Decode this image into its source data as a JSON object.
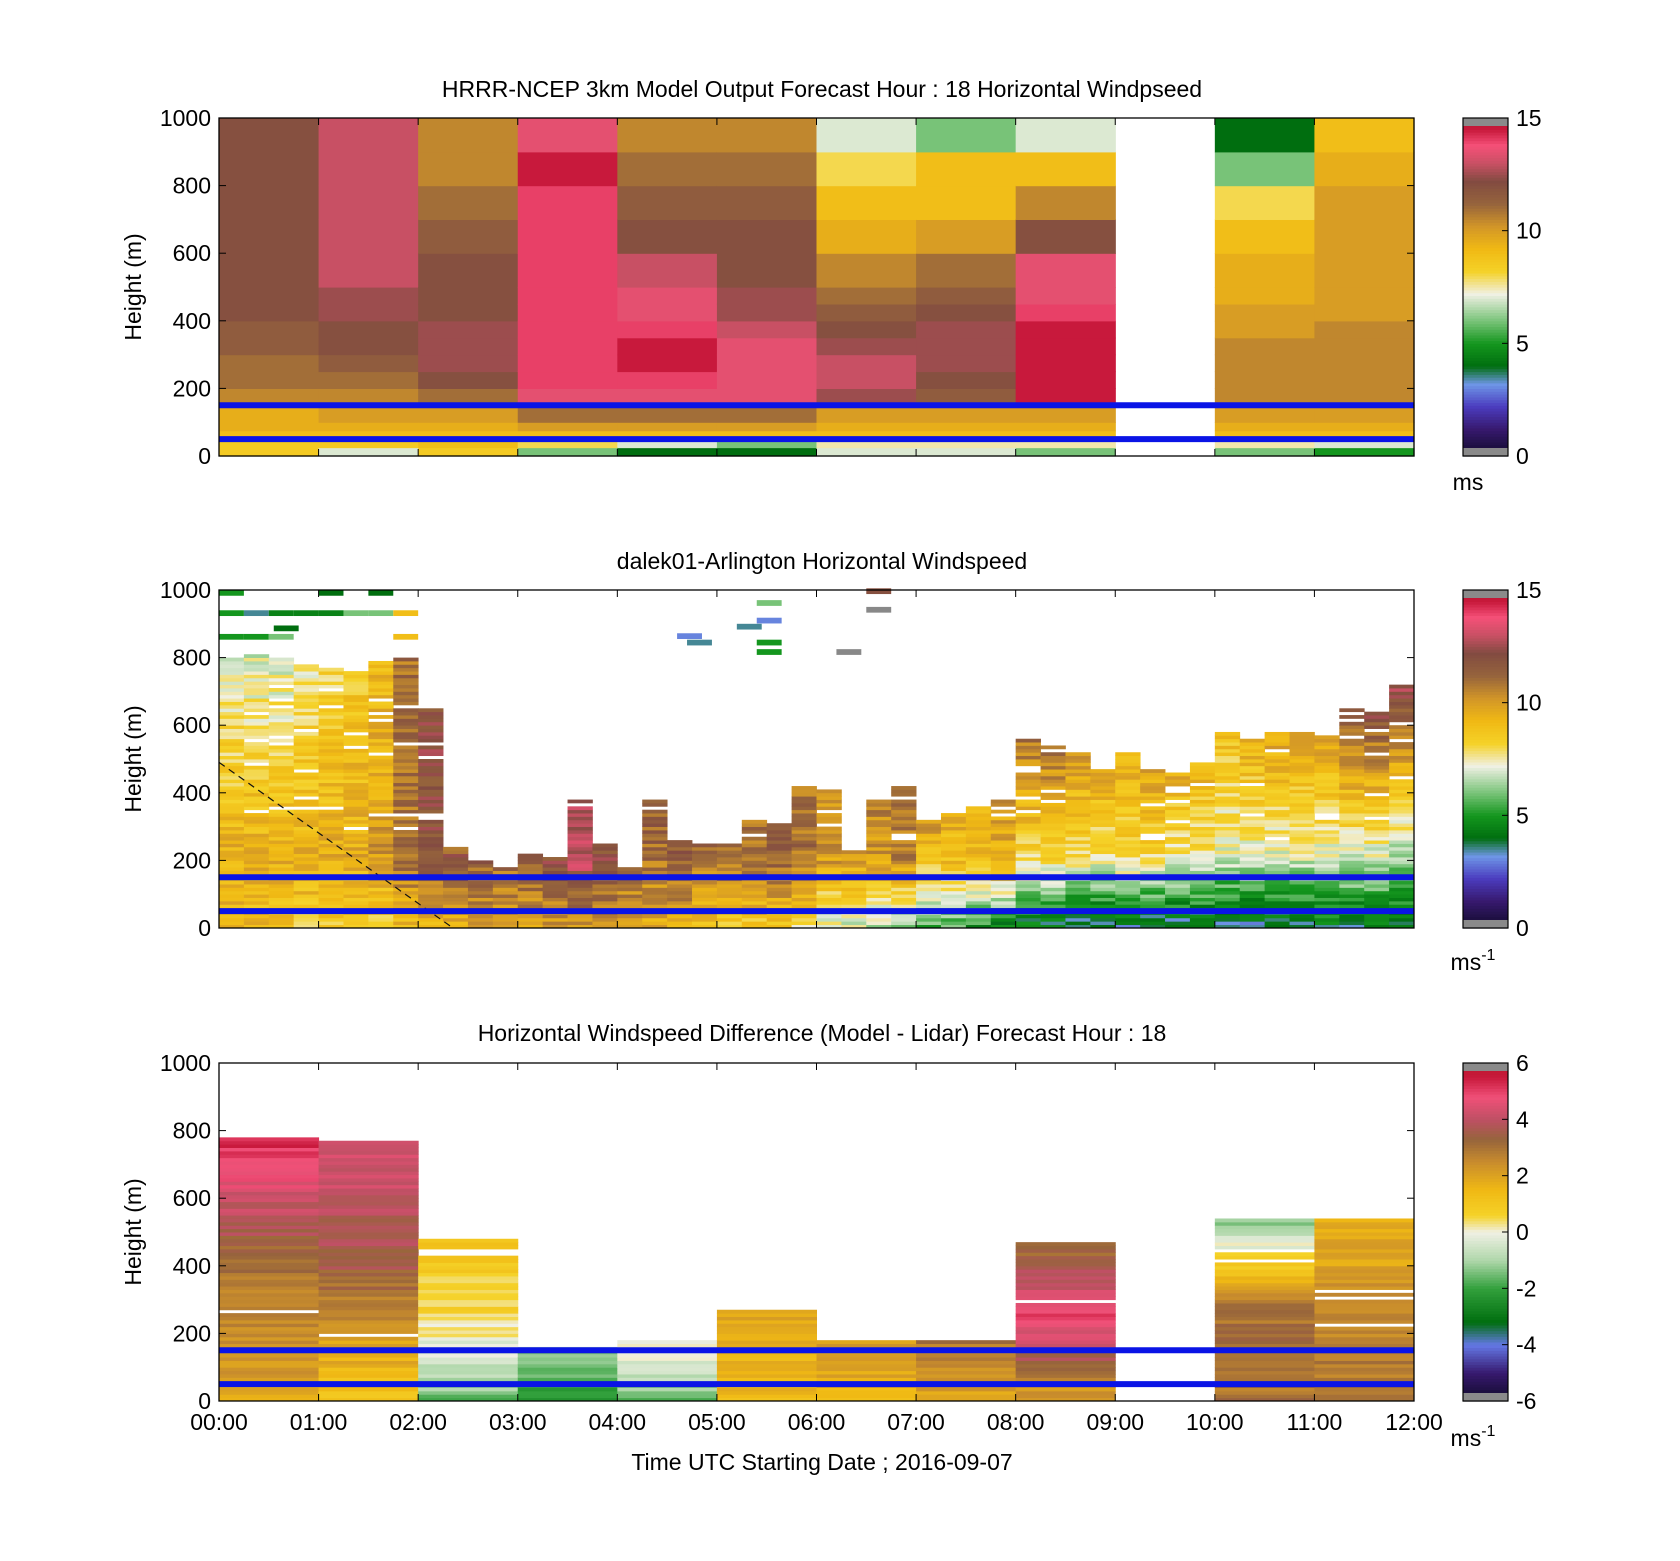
{
  "figure": {
    "xlabel": "Time UTC  Starting Date ; 2016-09-07",
    "x_ticks": [
      "00:00",
      "01:00",
      "02:00",
      "03:00",
      "04:00",
      "05:00",
      "06:00",
      "07:00",
      "08:00",
      "09:00",
      "10:00",
      "11:00",
      "12:00"
    ]
  },
  "panels": [
    {
      "title": "HRRR-NCEP 3km Model Output   Forecast Hour : 18 Horizontal Windpseed",
      "ylabel": "Height (m)",
      "y_ticks": [
        "0",
        "200",
        "400",
        "600",
        "800",
        "1000"
      ],
      "cbar_ticks": [
        "0",
        "5",
        "10",
        "15"
      ],
      "cbar_unit": "ms",
      "cbar_sup": ""
    },
    {
      "title": "dalek01-Arlington  Horizontal Windspeed",
      "ylabel": "Height (m)",
      "y_ticks": [
        "0",
        "200",
        "400",
        "600",
        "800",
        "1000"
      ],
      "cbar_ticks": [
        "0",
        "5",
        "10",
        "15"
      ],
      "cbar_unit": "ms",
      "cbar_sup": "-1"
    },
    {
      "title": "Horizontal Windspeed Difference (Model - Lidar) Forecast Hour : 18",
      "ylabel": "Height (m)",
      "y_ticks": [
        "0",
        "200",
        "400",
        "600",
        "800",
        "1000"
      ],
      "cbar_ticks": [
        "-6",
        "-4",
        "-2",
        "0",
        "2",
        "4",
        "6"
      ],
      "cbar_unit": "ms",
      "cbar_sup": "-1"
    }
  ],
  "chart_data": [
    {
      "type": "heatmap",
      "title": "HRRR-NCEP 3km Model Output   Forecast Hour : 18 Horizontal Windpseed",
      "xlabel": "",
      "ylabel": "Height (m)",
      "x_range_hours": [
        0,
        12
      ],
      "ylim": [
        0,
        1000
      ],
      "clim": [
        0,
        15
      ],
      "colorbar_label": "ms",
      "column_start_hours": [
        0,
        1,
        2,
        3,
        4,
        5,
        6,
        7,
        8,
        9,
        10,
        11
      ],
      "height_levels_m": [
        0,
        25,
        50,
        75,
        100,
        150,
        200,
        250,
        300,
        350,
        400,
        450,
        500,
        600,
        700,
        800,
        900,
        1000
      ],
      "speed_ms": [
        [
          8.5,
          8.5,
          9,
          9.5,
          9.5,
          10.5,
          11,
          11,
          11.5,
          11.5,
          12,
          12,
          12,
          12,
          12,
          12,
          12
        ],
        [
          7,
          8.5,
          9,
          9.5,
          10,
          10.5,
          11,
          11.5,
          12,
          12,
          12.5,
          12.5,
          13,
          13,
          13,
          13,
          13
        ],
        [
          8.5,
          9,
          9,
          9.5,
          10,
          11,
          12,
          12.5,
          12.5,
          12.5,
          12,
          12,
          12,
          11.5,
          11,
          10.5,
          10.5
        ],
        [
          6,
          8,
          9,
          10,
          11,
          13.5,
          14,
          14,
          14,
          14,
          14,
          14,
          14,
          14,
          14,
          14.5,
          13.5
        ],
        [
          4,
          7,
          9,
          10,
          11,
          13.5,
          14,
          14.5,
          14.5,
          14,
          13.5,
          13.5,
          13,
          12,
          11.5,
          11,
          10.5
        ],
        [
          4,
          6,
          9,
          10,
          11,
          13.5,
          13.5,
          13.5,
          13.5,
          13,
          12.5,
          12.5,
          12,
          12,
          11.5,
          11,
          10.5
        ],
        [
          7,
          7.5,
          9,
          9.5,
          10,
          12.5,
          13,
          13,
          12.5,
          12,
          11.5,
          11,
          10.5,
          9.5,
          9,
          8,
          7
        ],
        [
          7,
          7.5,
          9,
          9.5,
          10,
          11.5,
          12,
          12.5,
          12.5,
          12.5,
          12,
          11.5,
          11,
          10,
          9,
          9,
          6
        ],
        [
          6,
          7.5,
          9,
          9.5,
          10,
          14.5,
          14.5,
          14.5,
          14.5,
          14.5,
          14,
          13.5,
          13.5,
          12,
          10.5,
          9,
          7
        ],
        [
          null,
          null,
          null,
          null,
          null,
          null,
          null,
          null,
          null,
          null,
          null,
          null,
          null,
          null,
          null,
          null,
          null
        ],
        [
          6,
          7.5,
          9,
          9.5,
          10,
          10.5,
          10.5,
          10.5,
          10.5,
          10,
          10,
          9.5,
          9.5,
          9,
          8,
          6,
          4
        ],
        [
          5,
          7,
          9,
          9.5,
          10,
          10.5,
          10.5,
          10.5,
          10.5,
          10.5,
          10,
          10,
          10,
          10,
          10,
          9.5,
          9
        ]
      ],
      "overlay_lines_m": [
        50,
        150
      ]
    },
    {
      "type": "heatmap",
      "title": "dalek01-Arlington  Horizontal Windspeed",
      "xlabel": "",
      "ylabel": "Height (m)",
      "x_range_hours": [
        0,
        12
      ],
      "ylim": [
        0,
        1000
      ],
      "clim": [
        0,
        15
      ],
      "colorbar_label": "ms-1",
      "profile_start_hours": [
        0,
        0.25,
        0.5,
        0.75,
        1,
        1.25,
        1.5,
        1.75,
        2,
        2.25,
        2.5,
        2.75,
        3,
        3.25,
        3.5,
        3.75,
        4,
        4.25,
        4.5,
        4.75,
        5,
        5.25,
        5.5,
        5.75,
        6,
        6.25,
        6.5,
        6.75,
        7,
        7.25,
        7.5,
        7.75,
        8,
        8.25,
        8.5,
        8.75,
        9,
        9.25,
        9.5,
        9.75,
        10,
        10.25,
        10.5,
        10.75,
        11,
        11.25,
        11.5,
        11.75
      ],
      "data_top_m": [
        800,
        810,
        800,
        780,
        770,
        760,
        790,
        800,
        650,
        240,
        200,
        180,
        220,
        210,
        380,
        250,
        180,
        380,
        260,
        250,
        250,
        320,
        310,
        420,
        420,
        230,
        380,
        420,
        320,
        340,
        360,
        390,
        560,
        540,
        520,
        470,
        520,
        470,
        460,
        490,
        580,
        560,
        580,
        580,
        570,
        650,
        640,
        720
      ],
      "surface_speed_ms": [
        9,
        9,
        9,
        8.5,
        8.5,
        8.5,
        8,
        9,
        9,
        9.5,
        10,
        10,
        10,
        10,
        10,
        10,
        9.5,
        9.5,
        9.5,
        9,
        8.5,
        8.5,
        8.5,
        8,
        7,
        7,
        6.5,
        6,
        5.5,
        5.5,
        5,
        4.5,
        4,
        4,
        3.5,
        3.5,
        3.5,
        3.5,
        3.5,
        3.5,
        3.5,
        3.5,
        3.5,
        3.5,
        4,
        4,
        4,
        4
      ],
      "speed_at_200m_ms": [
        9.5,
        9.5,
        9.5,
        9.5,
        9.5,
        9.5,
        10,
        11,
        12,
        12,
        11.5,
        11,
        11.5,
        12,
        13,
        12,
        11.5,
        11,
        11.5,
        11,
        11,
        11,
        11.5,
        11,
        10,
        10,
        10,
        10.5,
        9,
        9,
        9,
        9.5,
        8,
        8,
        8,
        7.5,
        8,
        8,
        7.5,
        7.5,
        7,
        7,
        7,
        7,
        7,
        7,
        7,
        6.5
      ],
      "speed_at_top_ms": [
        7,
        7,
        7,
        7.5,
        8,
        8.5,
        9,
        11,
        12,
        11,
        11,
        11,
        12,
        12,
        13,
        12,
        12,
        11.5,
        12,
        11,
        11,
        11,
        11.5,
        11,
        10.5,
        10.5,
        10.5,
        11.5,
        10,
        9.5,
        9.5,
        10,
        11,
        11,
        10,
        10,
        9.5,
        10,
        9.5,
        9.5,
        9,
        9.5,
        10,
        10,
        10,
        12,
        12,
        12.5
      ],
      "dashed_line": {
        "x_hours": [
          0,
          2.35
        ],
        "height_m": [
          490,
          0
        ]
      },
      "overlay_lines_m": [
        50,
        150
      ]
    },
    {
      "type": "heatmap",
      "title": "Horizontal Windspeed Difference (Model - Lidar) Forecast Hour : 18",
      "xlabel": "Time UTC  Starting Date ; 2016-09-07",
      "ylabel": "Height (m)",
      "x_range_hours": [
        0,
        12
      ],
      "ylim": [
        0,
        1000
      ],
      "clim": [
        -6,
        6
      ],
      "colorbar_label": "ms-1",
      "column_start_hours": [
        0,
        1,
        2,
        3,
        4,
        5,
        6,
        7,
        8,
        9,
        10,
        11
      ],
      "top_m": [
        790,
        790,
        480,
        160,
        180,
        270,
        180,
        180,
        470,
        0,
        540,
        540
      ],
      "diff_bottom_ms": [
        2,
        1,
        -1.5,
        -2.5,
        -1.5,
        1.5,
        1.5,
        2,
        2,
        null,
        3,
        3
      ],
      "diff_mid_ms": [
        3,
        3.5,
        0.5,
        -1.5,
        -0.5,
        1.5,
        2,
        2.5,
        5,
        null,
        3,
        2.5
      ],
      "diff_top_ms": [
        5.5,
        4.5,
        1,
        -1,
        0,
        2,
        2,
        3,
        3,
        null,
        -1.5,
        1.5
      ],
      "overlay_lines_m": [
        50,
        150
      ]
    }
  ]
}
